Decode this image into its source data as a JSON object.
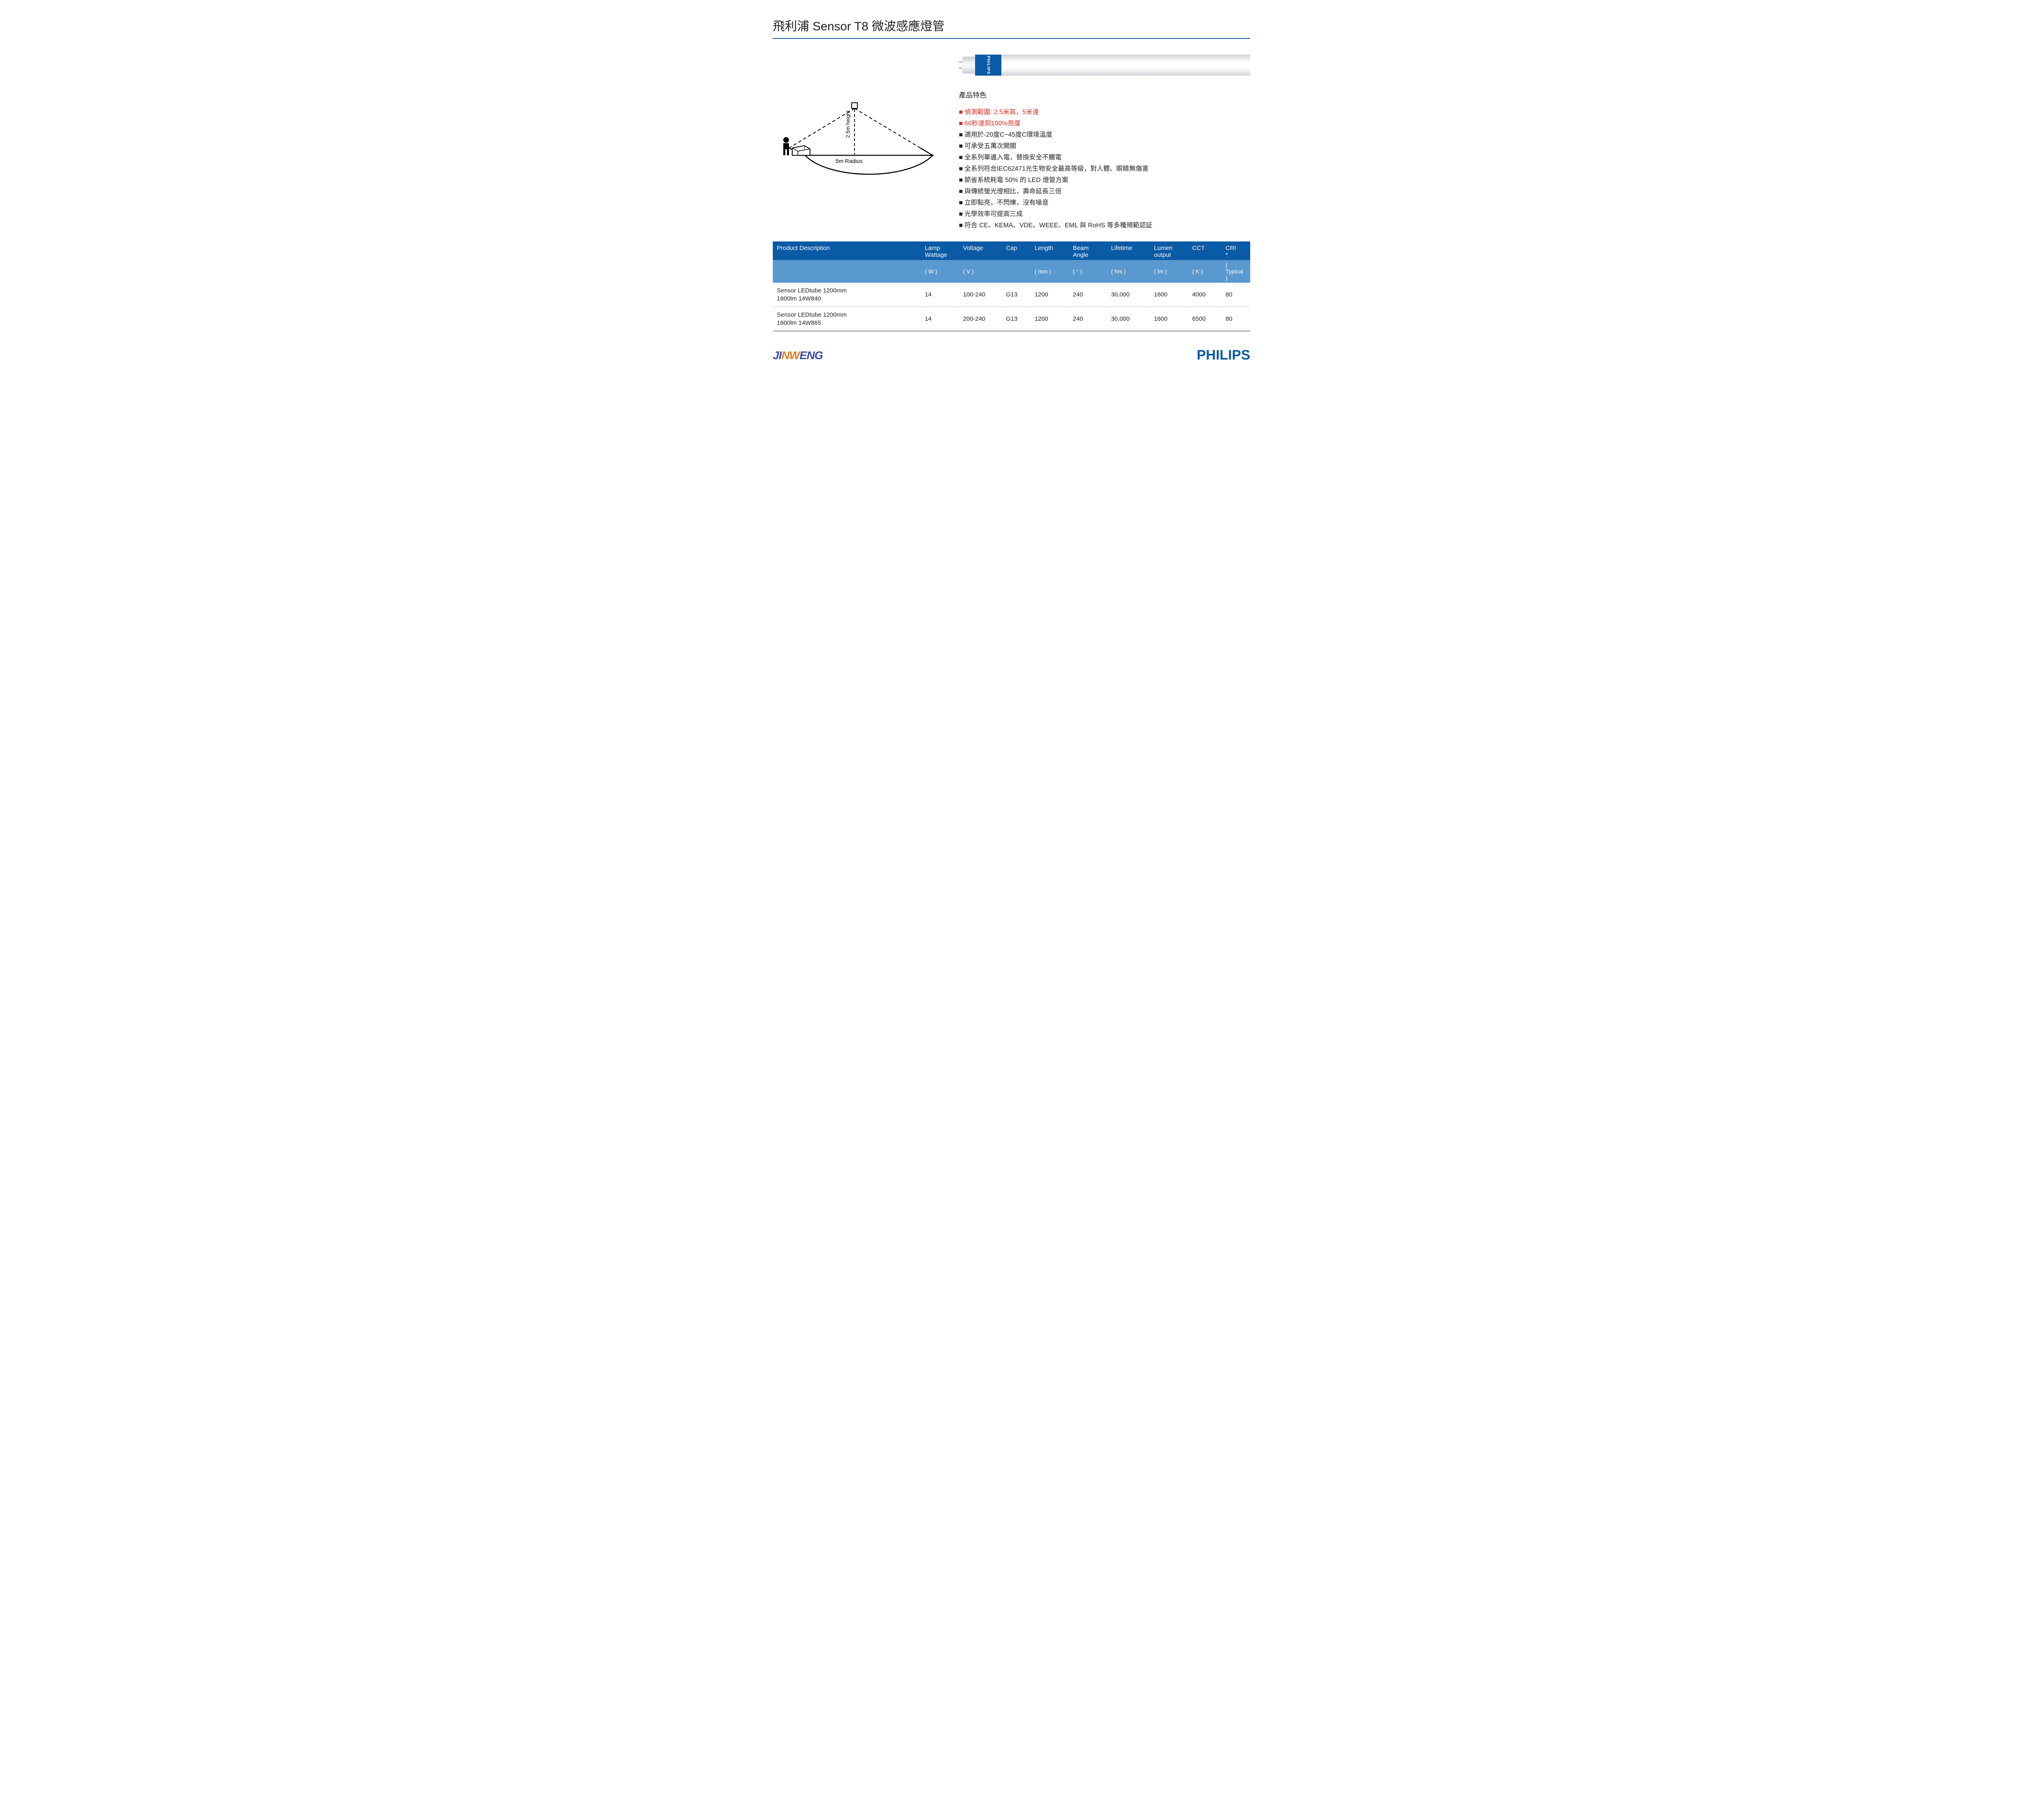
{
  "title": "飛利浦 Sensor T8 微波感應燈管",
  "tube": {
    "brand": "PHILIPS"
  },
  "diagram": {
    "height_label": "2.5m height",
    "radius_label": "5m Radius"
  },
  "features": {
    "heading": "產品特色",
    "bullet": "■",
    "items": [
      {
        "text": "偵測範圍: 2.5米高，5米遠",
        "highlight": true
      },
      {
        "text": "60秒達到100%亮度",
        "highlight": true
      },
      {
        "text": "適用於-20度C~45度C環境溫度",
        "highlight": false
      },
      {
        "text": "可承受五萬次開關",
        "highlight": false
      },
      {
        "text": "全系列單邊入電，替換安全不觸電",
        "highlight": false
      },
      {
        "text": "全系列符合IEC62471光生物安全最高等級，對人體、眼睛無傷害",
        "highlight": false
      },
      {
        "text": "節省系統耗電 50% 的 LED 燈管方案",
        "highlight": false
      },
      {
        "text": "與傳統螢光燈相比，壽命延長三倍",
        "highlight": false
      },
      {
        "text": "立即點亮，不閃爍，沒有噪音",
        "highlight": false
      },
      {
        "text": "光學效率可提高三成",
        "highlight": false
      },
      {
        "text": "符合 CE、KEMA、VDE、WEEE、EML 與 RoHS 等多種規範認証",
        "highlight": false
      }
    ]
  },
  "table": {
    "headers": [
      {
        "line1": "Product Description",
        "line2": ""
      },
      {
        "line1": "Lamp Wattage",
        "line2": "( W )"
      },
      {
        "line1": "Voltage",
        "line2": "( V )"
      },
      {
        "line1": "Cap",
        "line2": ""
      },
      {
        "line1": "Length",
        "line2": "( mm )"
      },
      {
        "line1": "Beam Angle",
        "line2": "( ° )"
      },
      {
        "line1": "Lifetime",
        "line2": "( hrs )"
      },
      {
        "line1": "Lumen output",
        "line2": "( lm )"
      },
      {
        "line1": "CCT",
        "line2": "( K )"
      },
      {
        "line1": "CRI *",
        "line2": "( Typical )"
      }
    ],
    "col_widths": [
      "31%",
      "8%",
      "9%",
      "6%",
      "8%",
      "8%",
      "9%",
      "8%",
      "7%",
      "6%"
    ],
    "rows": [
      [
        "Sensor LEDtube 1200mm\n1600lm 14W840",
        "14",
        "100-240",
        "G13",
        "1200",
        "240",
        "30,000",
        "1600",
        "4000",
        "80"
      ],
      [
        "Sensor LEDtube 1200mm\n1600lm 14W865",
        "14",
        "200-240",
        "G13",
        "1200",
        "240",
        "30,000",
        "1600",
        "6500",
        "80"
      ]
    ]
  },
  "footer": {
    "left_logo": {
      "part1": "JI",
      "mid": "NW",
      "part2": "ENG"
    },
    "right_logo": "PHILIPS"
  },
  "colors": {
    "primary": "#0b5aa5",
    "header2": "#5a99cf",
    "highlight": "#d4291f"
  }
}
